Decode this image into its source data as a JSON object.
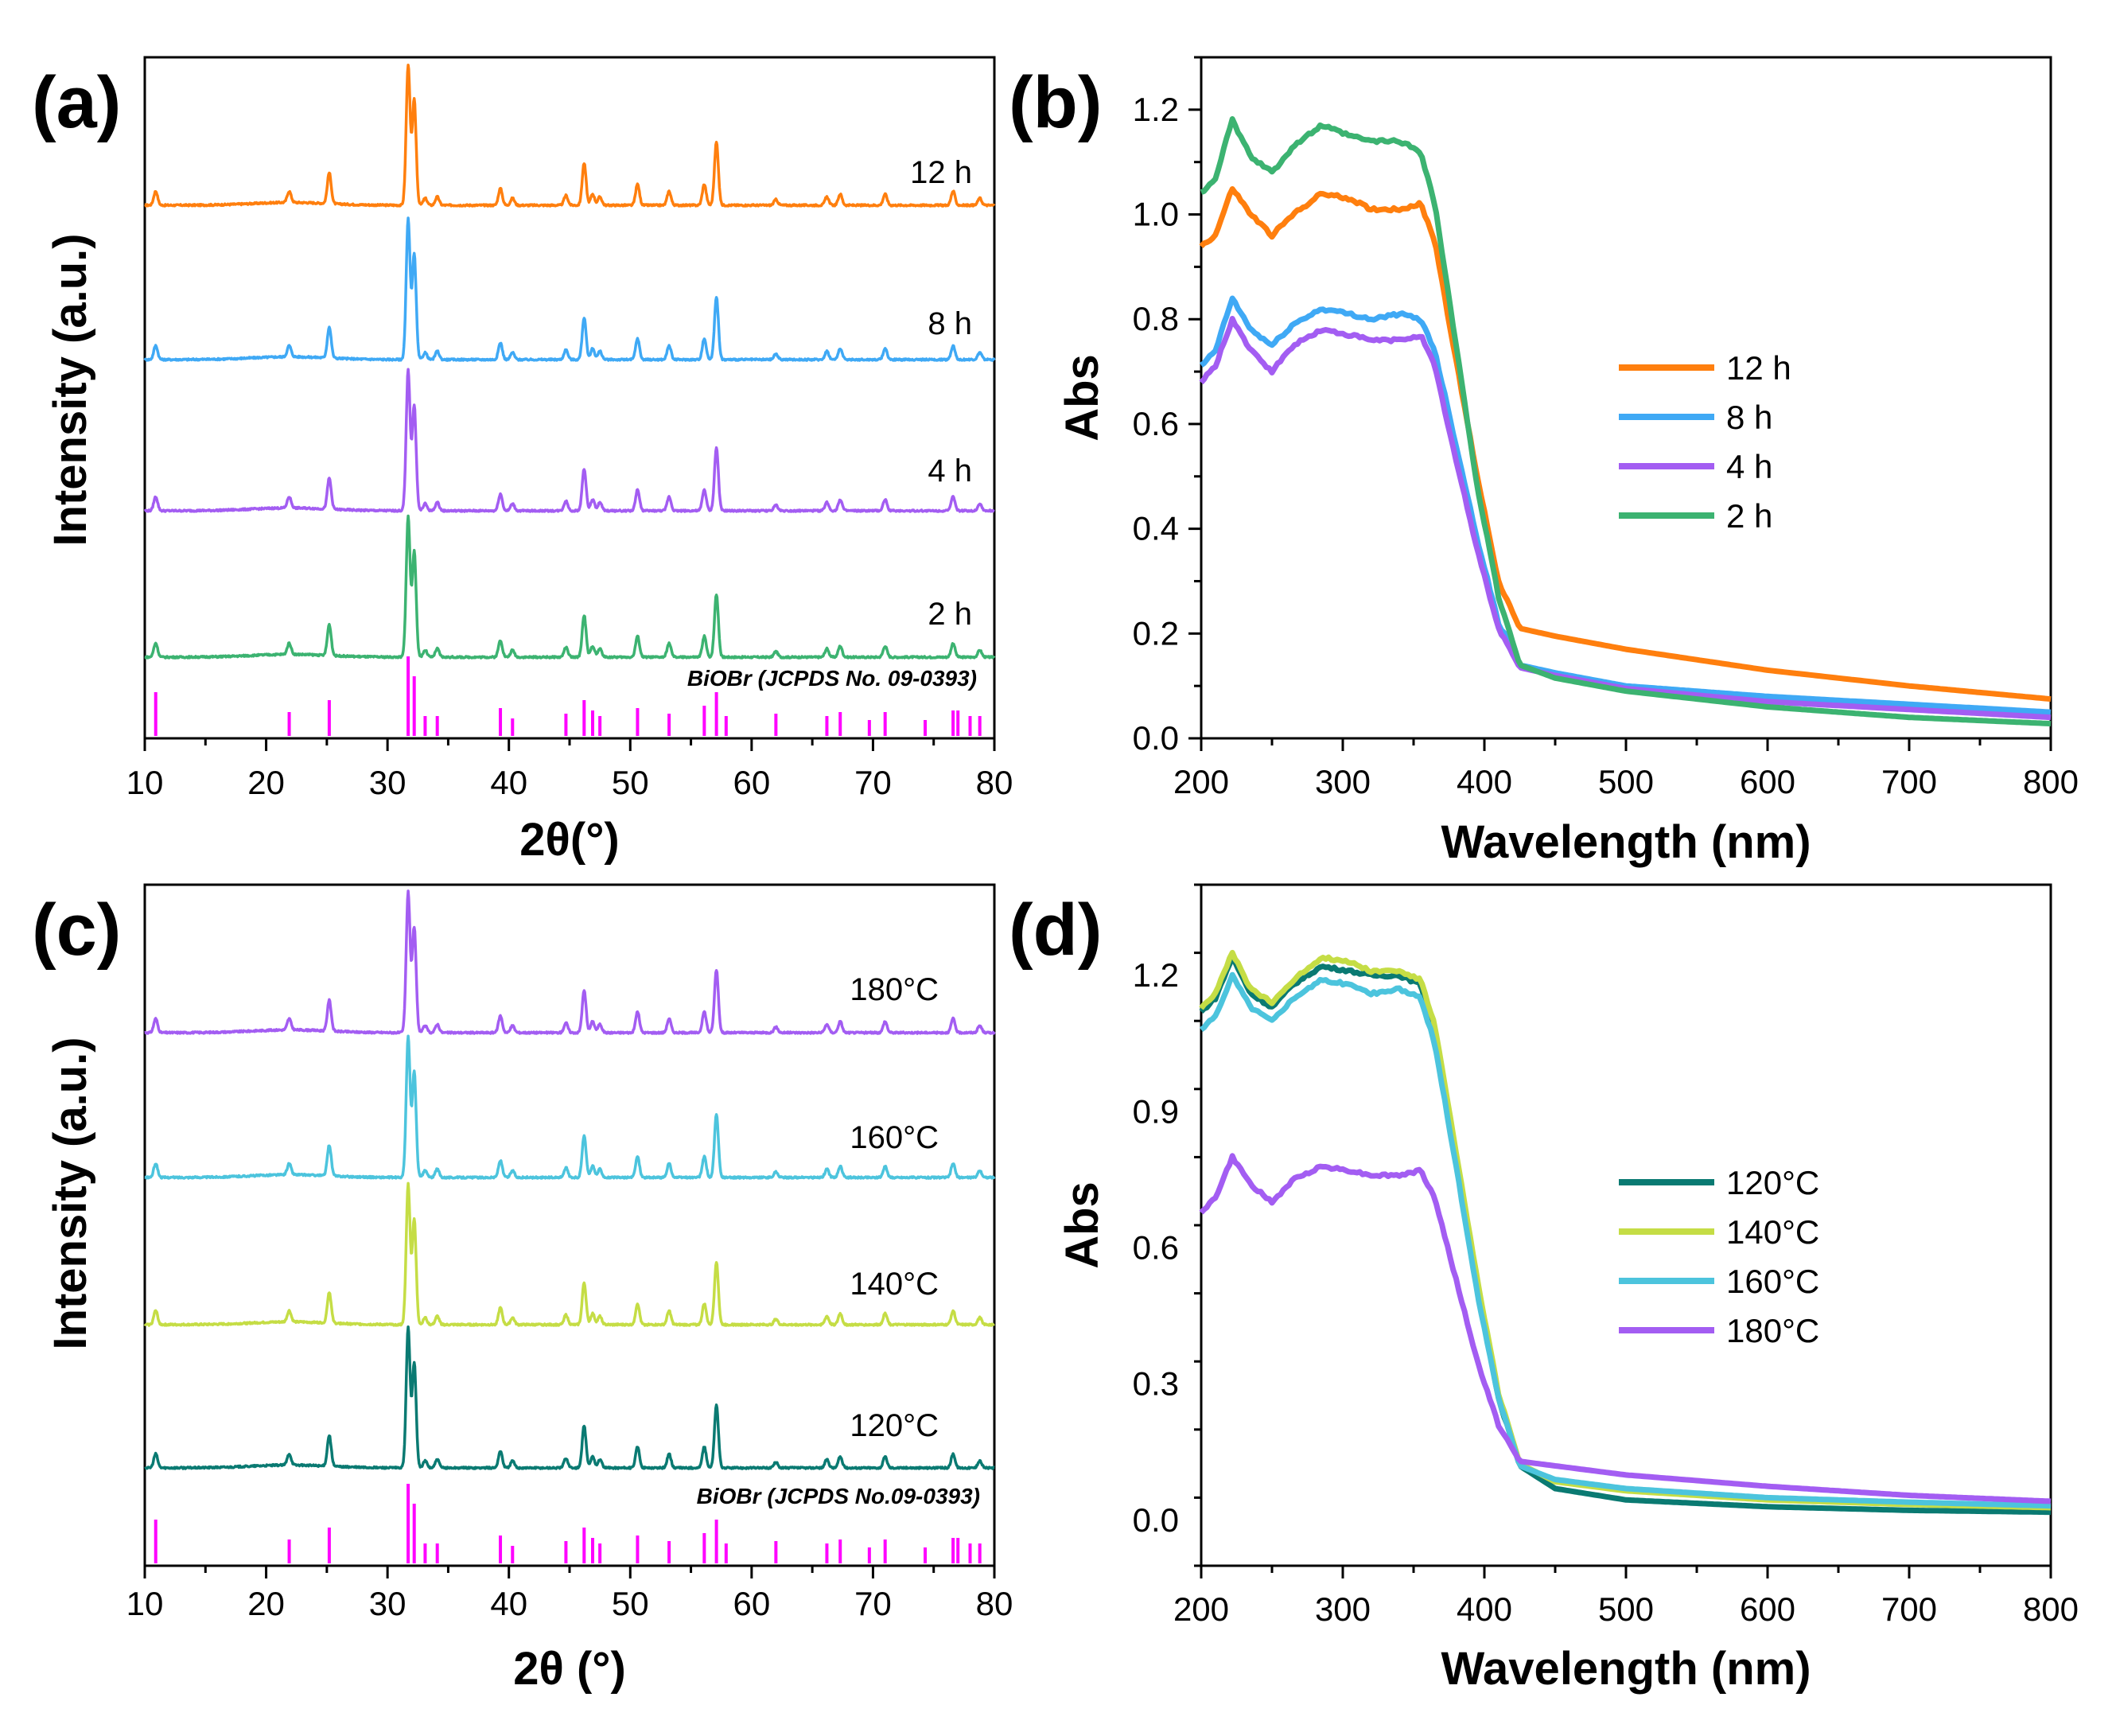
{
  "figure": {
    "background": "#ffffff"
  },
  "chart_data": [
    {
      "panel": "(a)",
      "type": "line",
      "xlabel": "2θ(°)",
      "ylabel": "Intensity (a.u.)",
      "xlim": [
        10,
        80
      ],
      "xticks": [
        10,
        20,
        30,
        40,
        50,
        60,
        70,
        80
      ],
      "show_y_ticks": false,
      "series": [
        {
          "name": "12 h",
          "color": "#ff7f0e"
        },
        {
          "name": "8 h",
          "color": "#3fa9f5"
        },
        {
          "name": "4 h",
          "color": "#a35df2"
        },
        {
          "name": "2 h",
          "color": "#3cb371"
        }
      ],
      "reference": {
        "label": "BiOBr (JCPDS No. 09-0393)",
        "color": "#ff00ff",
        "peaks_2theta": [
          10.9,
          21.9,
          25.2,
          31.7,
          32.2,
          33.1,
          34.1,
          39.3,
          40.3,
          44.7,
          46.2,
          46.9,
          47.5,
          50.6,
          53.2,
          56.1,
          57.1,
          57.9,
          62.0,
          66.2,
          67.3,
          69.7,
          71.0,
          74.3,
          76.6,
          77.0,
          78.0,
          78.8
        ],
        "peaks_rel_intensity": [
          0.55,
          0.3,
          0.45,
          1.0,
          0.75,
          0.25,
          0.25,
          0.35,
          0.22,
          0.28,
          0.45,
          0.32,
          0.25,
          0.35,
          0.28,
          0.38,
          0.55,
          0.25,
          0.28,
          0.25,
          0.3,
          0.2,
          0.3,
          0.2,
          0.32,
          0.32,
          0.25,
          0.25
        ]
      },
      "pattern_peaks": {
        "two_theta": [
          10.9,
          21.9,
          25.2,
          31.7,
          32.2,
          33.1,
          34.1,
          39.3,
          40.3,
          44.7,
          46.2,
          46.9,
          47.5,
          50.6,
          53.2,
          56.1,
          57.1,
          62.0,
          66.2,
          67.3,
          71.0,
          76.6,
          78.8
        ],
        "rel_intensity": [
          0.1,
          0.08,
          0.22,
          1.0,
          0.75,
          0.05,
          0.06,
          0.12,
          0.05,
          0.07,
          0.3,
          0.08,
          0.06,
          0.15,
          0.1,
          0.15,
          0.45,
          0.04,
          0.06,
          0.08,
          0.08,
          0.1,
          0.05
        ]
      }
    },
    {
      "panel": "(b)",
      "type": "line",
      "xlabel": "Wavelength (nm)",
      "ylabel": "Abs",
      "xlim": [
        200,
        800
      ],
      "ylim": [
        0.0,
        1.3
      ],
      "xticks": [
        200,
        300,
        400,
        500,
        600,
        700,
        800
      ],
      "yticks": [
        "0.0",
        "0.2",
        "0.4",
        "0.6",
        "0.8",
        "1.0",
        "1.2"
      ],
      "legend_position": "center-right",
      "series": [
        {
          "name": "12 h",
          "color": "#ff7f0e",
          "x": [
            200,
            210,
            222,
            235,
            250,
            265,
            285,
            305,
            320,
            340,
            355,
            365,
            380,
            395,
            410,
            425,
            450,
            500,
            600,
            700,
            800
          ],
          "y": [
            0.94,
            0.96,
            1.05,
            1.0,
            0.96,
            1.0,
            1.04,
            1.03,
            1.01,
            1.01,
            1.02,
            0.95,
            0.72,
            0.5,
            0.3,
            0.21,
            0.195,
            0.17,
            0.13,
            0.1,
            0.075
          ]
        },
        {
          "name": "8 h",
          "color": "#3fa9f5",
          "x": [
            200,
            210,
            222,
            235,
            250,
            265,
            285,
            305,
            320,
            340,
            355,
            365,
            380,
            395,
            410,
            425,
            450,
            500,
            600,
            700,
            800
          ],
          "y": [
            0.71,
            0.74,
            0.84,
            0.78,
            0.75,
            0.79,
            0.82,
            0.81,
            0.8,
            0.81,
            0.8,
            0.74,
            0.56,
            0.38,
            0.22,
            0.14,
            0.125,
            0.1,
            0.08,
            0.065,
            0.05
          ]
        },
        {
          "name": "4 h",
          "color": "#a35df2",
          "x": [
            200,
            210,
            222,
            235,
            250,
            265,
            285,
            305,
            320,
            340,
            355,
            365,
            380,
            395,
            410,
            425,
            450,
            500,
            600,
            700,
            800
          ],
          "y": [
            0.68,
            0.71,
            0.8,
            0.74,
            0.7,
            0.75,
            0.78,
            0.77,
            0.76,
            0.76,
            0.77,
            0.71,
            0.53,
            0.36,
            0.21,
            0.135,
            0.12,
            0.095,
            0.07,
            0.055,
            0.04
          ]
        },
        {
          "name": "2 h",
          "color": "#3cb371",
          "x": [
            200,
            210,
            222,
            235,
            250,
            265,
            285,
            305,
            320,
            340,
            355,
            365,
            380,
            395,
            410,
            425,
            450,
            500,
            600,
            700,
            800
          ],
          "y": [
            1.04,
            1.07,
            1.18,
            1.11,
            1.08,
            1.13,
            1.17,
            1.15,
            1.14,
            1.14,
            1.12,
            1.02,
            0.75,
            0.48,
            0.27,
            0.14,
            0.115,
            0.09,
            0.06,
            0.04,
            0.028
          ]
        }
      ]
    },
    {
      "panel": "(c)",
      "type": "line",
      "xlabel": "2θ (°)",
      "ylabel": "Intensity (a.u.)",
      "xlim": [
        10,
        80
      ],
      "xticks": [
        10,
        20,
        30,
        40,
        50,
        60,
        70,
        80
      ],
      "show_y_ticks": false,
      "series": [
        {
          "name": "180°C",
          "color": "#a35df2"
        },
        {
          "name": "160°C",
          "color": "#4cc4dd"
        },
        {
          "name": "140°C",
          "color": "#c5dd45"
        },
        {
          "name": "120°C",
          "color": "#0a7a72"
        }
      ],
      "reference": {
        "label": "BiOBr (JCPDS No.09-0393)",
        "color": "#ff00ff",
        "peaks_2theta": [
          10.9,
          21.9,
          25.2,
          31.7,
          32.2,
          33.1,
          34.1,
          39.3,
          40.3,
          44.7,
          46.2,
          46.9,
          47.5,
          50.6,
          53.2,
          56.1,
          57.1,
          57.9,
          62.0,
          66.2,
          67.3,
          69.7,
          71.0,
          74.3,
          76.6,
          77.0,
          78.0,
          78.8
        ],
        "peaks_rel_intensity": [
          0.55,
          0.3,
          0.45,
          1.0,
          0.75,
          0.25,
          0.25,
          0.35,
          0.22,
          0.28,
          0.45,
          0.32,
          0.25,
          0.35,
          0.28,
          0.38,
          0.55,
          0.25,
          0.28,
          0.25,
          0.3,
          0.2,
          0.3,
          0.2,
          0.32,
          0.32,
          0.25,
          0.25
        ]
      },
      "pattern_peaks": {
        "two_theta": [
          10.9,
          21.9,
          25.2,
          31.7,
          32.2,
          33.1,
          34.1,
          39.3,
          40.3,
          44.7,
          46.2,
          46.9,
          47.5,
          50.6,
          53.2,
          56.1,
          57.1,
          62.0,
          66.2,
          67.3,
          71.0,
          76.6,
          78.8
        ],
        "rel_intensity": [
          0.1,
          0.08,
          0.22,
          1.0,
          0.75,
          0.05,
          0.06,
          0.12,
          0.05,
          0.07,
          0.3,
          0.08,
          0.06,
          0.15,
          0.1,
          0.15,
          0.45,
          0.04,
          0.06,
          0.08,
          0.08,
          0.1,
          0.05
        ]
      }
    },
    {
      "panel": "(d)",
      "type": "line",
      "xlabel": "Wavelength (nm)",
      "ylabel": "Abs",
      "xlim": [
        200,
        800
      ],
      "ylim": [
        -0.1,
        1.4
      ],
      "xticks": [
        200,
        300,
        400,
        500,
        600,
        700,
        800
      ],
      "yticks": [
        "0.0",
        "0.3",
        "0.6",
        "0.9",
        "1.2"
      ],
      "legend_position": "center-right",
      "series": [
        {
          "name": "120°C",
          "color": "#0a7a72",
          "x": [
            200,
            210,
            222,
            235,
            250,
            265,
            285,
            305,
            320,
            340,
            355,
            365,
            380,
            395,
            410,
            425,
            450,
            500,
            600,
            700,
            800
          ],
          "y": [
            1.12,
            1.15,
            1.24,
            1.16,
            1.13,
            1.18,
            1.22,
            1.21,
            1.2,
            1.2,
            1.18,
            1.08,
            0.8,
            0.52,
            0.27,
            0.12,
            0.07,
            0.045,
            0.03,
            0.022,
            0.018
          ]
        },
        {
          "name": "140°C",
          "color": "#c5dd45",
          "x": [
            200,
            210,
            222,
            235,
            250,
            265,
            285,
            305,
            320,
            340,
            355,
            365,
            380,
            395,
            410,
            425,
            450,
            500,
            600,
            700,
            800
          ],
          "y": [
            1.13,
            1.16,
            1.25,
            1.17,
            1.14,
            1.19,
            1.24,
            1.23,
            1.21,
            1.21,
            1.19,
            1.09,
            0.81,
            0.53,
            0.28,
            0.125,
            0.085,
            0.065,
            0.045,
            0.035,
            0.028
          ]
        },
        {
          "name": "160°C",
          "color": "#4cc4dd",
          "x": [
            200,
            210,
            222,
            235,
            250,
            265,
            285,
            305,
            320,
            340,
            355,
            365,
            380,
            395,
            410,
            425,
            450,
            500,
            600,
            700,
            800
          ],
          "y": [
            1.08,
            1.11,
            1.2,
            1.13,
            1.1,
            1.15,
            1.19,
            1.18,
            1.16,
            1.17,
            1.15,
            1.05,
            0.78,
            0.5,
            0.27,
            0.12,
            0.09,
            0.07,
            0.05,
            0.04,
            0.032
          ]
        },
        {
          "name": "180°C",
          "color": "#a35df2",
          "x": [
            200,
            210,
            222,
            235,
            250,
            265,
            285,
            305,
            320,
            340,
            355,
            365,
            380,
            395,
            410,
            425,
            450,
            500,
            600,
            700,
            800
          ],
          "y": [
            0.68,
            0.71,
            0.8,
            0.74,
            0.7,
            0.75,
            0.78,
            0.77,
            0.76,
            0.76,
            0.77,
            0.71,
            0.53,
            0.35,
            0.21,
            0.13,
            0.12,
            0.1,
            0.075,
            0.055,
            0.042
          ]
        }
      ]
    }
  ]
}
